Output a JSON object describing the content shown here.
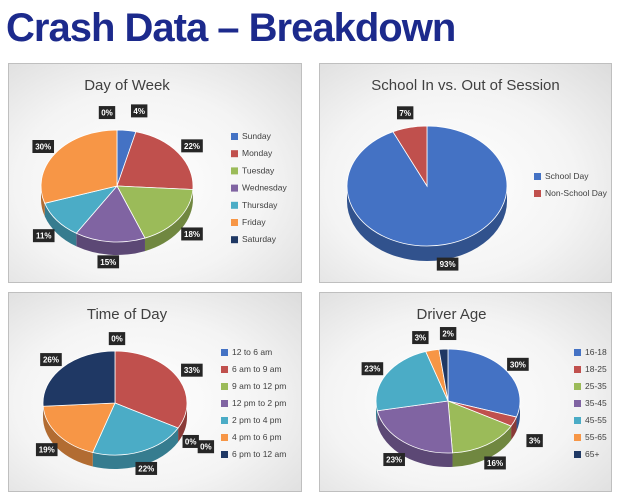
{
  "page": {
    "title": "Crash Data – Breakdown"
  },
  "chart_data": [
    {
      "type": "pie",
      "title": "Day of Week",
      "categories": [
        "Sunday",
        "Monday",
        "Tuesday",
        "Wednesday",
        "Thursday",
        "Friday",
        "Saturday"
      ],
      "values": [
        4,
        22,
        18,
        15,
        11,
        30,
        0
      ],
      "labels": [
        "4%",
        "22%",
        "18%",
        "15%",
        "11%",
        "30%",
        "0%"
      ],
      "colors": [
        "#4472c4",
        "#c0504d",
        "#9bbb59",
        "#8064a2",
        "#4bacc6",
        "#f79646",
        "#1f3864"
      ],
      "legend_position": "right"
    },
    {
      "type": "pie",
      "title": "School In vs. Out of Session",
      "categories": [
        "School Day",
        "Non-School Day"
      ],
      "values": [
        93,
        7
      ],
      "labels": [
        "93%",
        "7%"
      ],
      "colors": [
        "#4472c4",
        "#c0504d"
      ],
      "legend_position": "right"
    },
    {
      "type": "pie",
      "title": "Time of Day",
      "categories": [
        "12 to 6 am",
        "6 am to 9 am",
        "9 am to 12 pm",
        "12 pm to 2 pm",
        "2 pm to 4 pm",
        "4 pm to 6 pm",
        "6 pm to 12 am"
      ],
      "values": [
        0,
        33,
        0,
        0,
        22,
        19,
        26
      ],
      "labels": [
        "0%",
        "33%",
        "0%",
        "0%",
        "22%",
        "19%",
        "26%"
      ],
      "colors": [
        "#4472c4",
        "#c0504d",
        "#9bbb59",
        "#8064a2",
        "#4bacc6",
        "#f79646",
        "#1f3864"
      ],
      "legend_position": "right"
    },
    {
      "type": "pie",
      "title": "Driver Age",
      "categories": [
        "16-18",
        "18-25",
        "25-35",
        "35-45",
        "45-55",
        "55-65",
        "65+"
      ],
      "values": [
        30,
        3,
        16,
        23,
        23,
        3,
        2
      ],
      "labels": [
        "30%",
        "3%",
        "16%",
        "23%",
        "23%",
        "3%",
        "2%"
      ],
      "colors": [
        "#4472c4",
        "#c0504d",
        "#9bbb59",
        "#8064a2",
        "#4bacc6",
        "#f79646",
        "#1f3864"
      ],
      "legend_position": "right"
    }
  ]
}
